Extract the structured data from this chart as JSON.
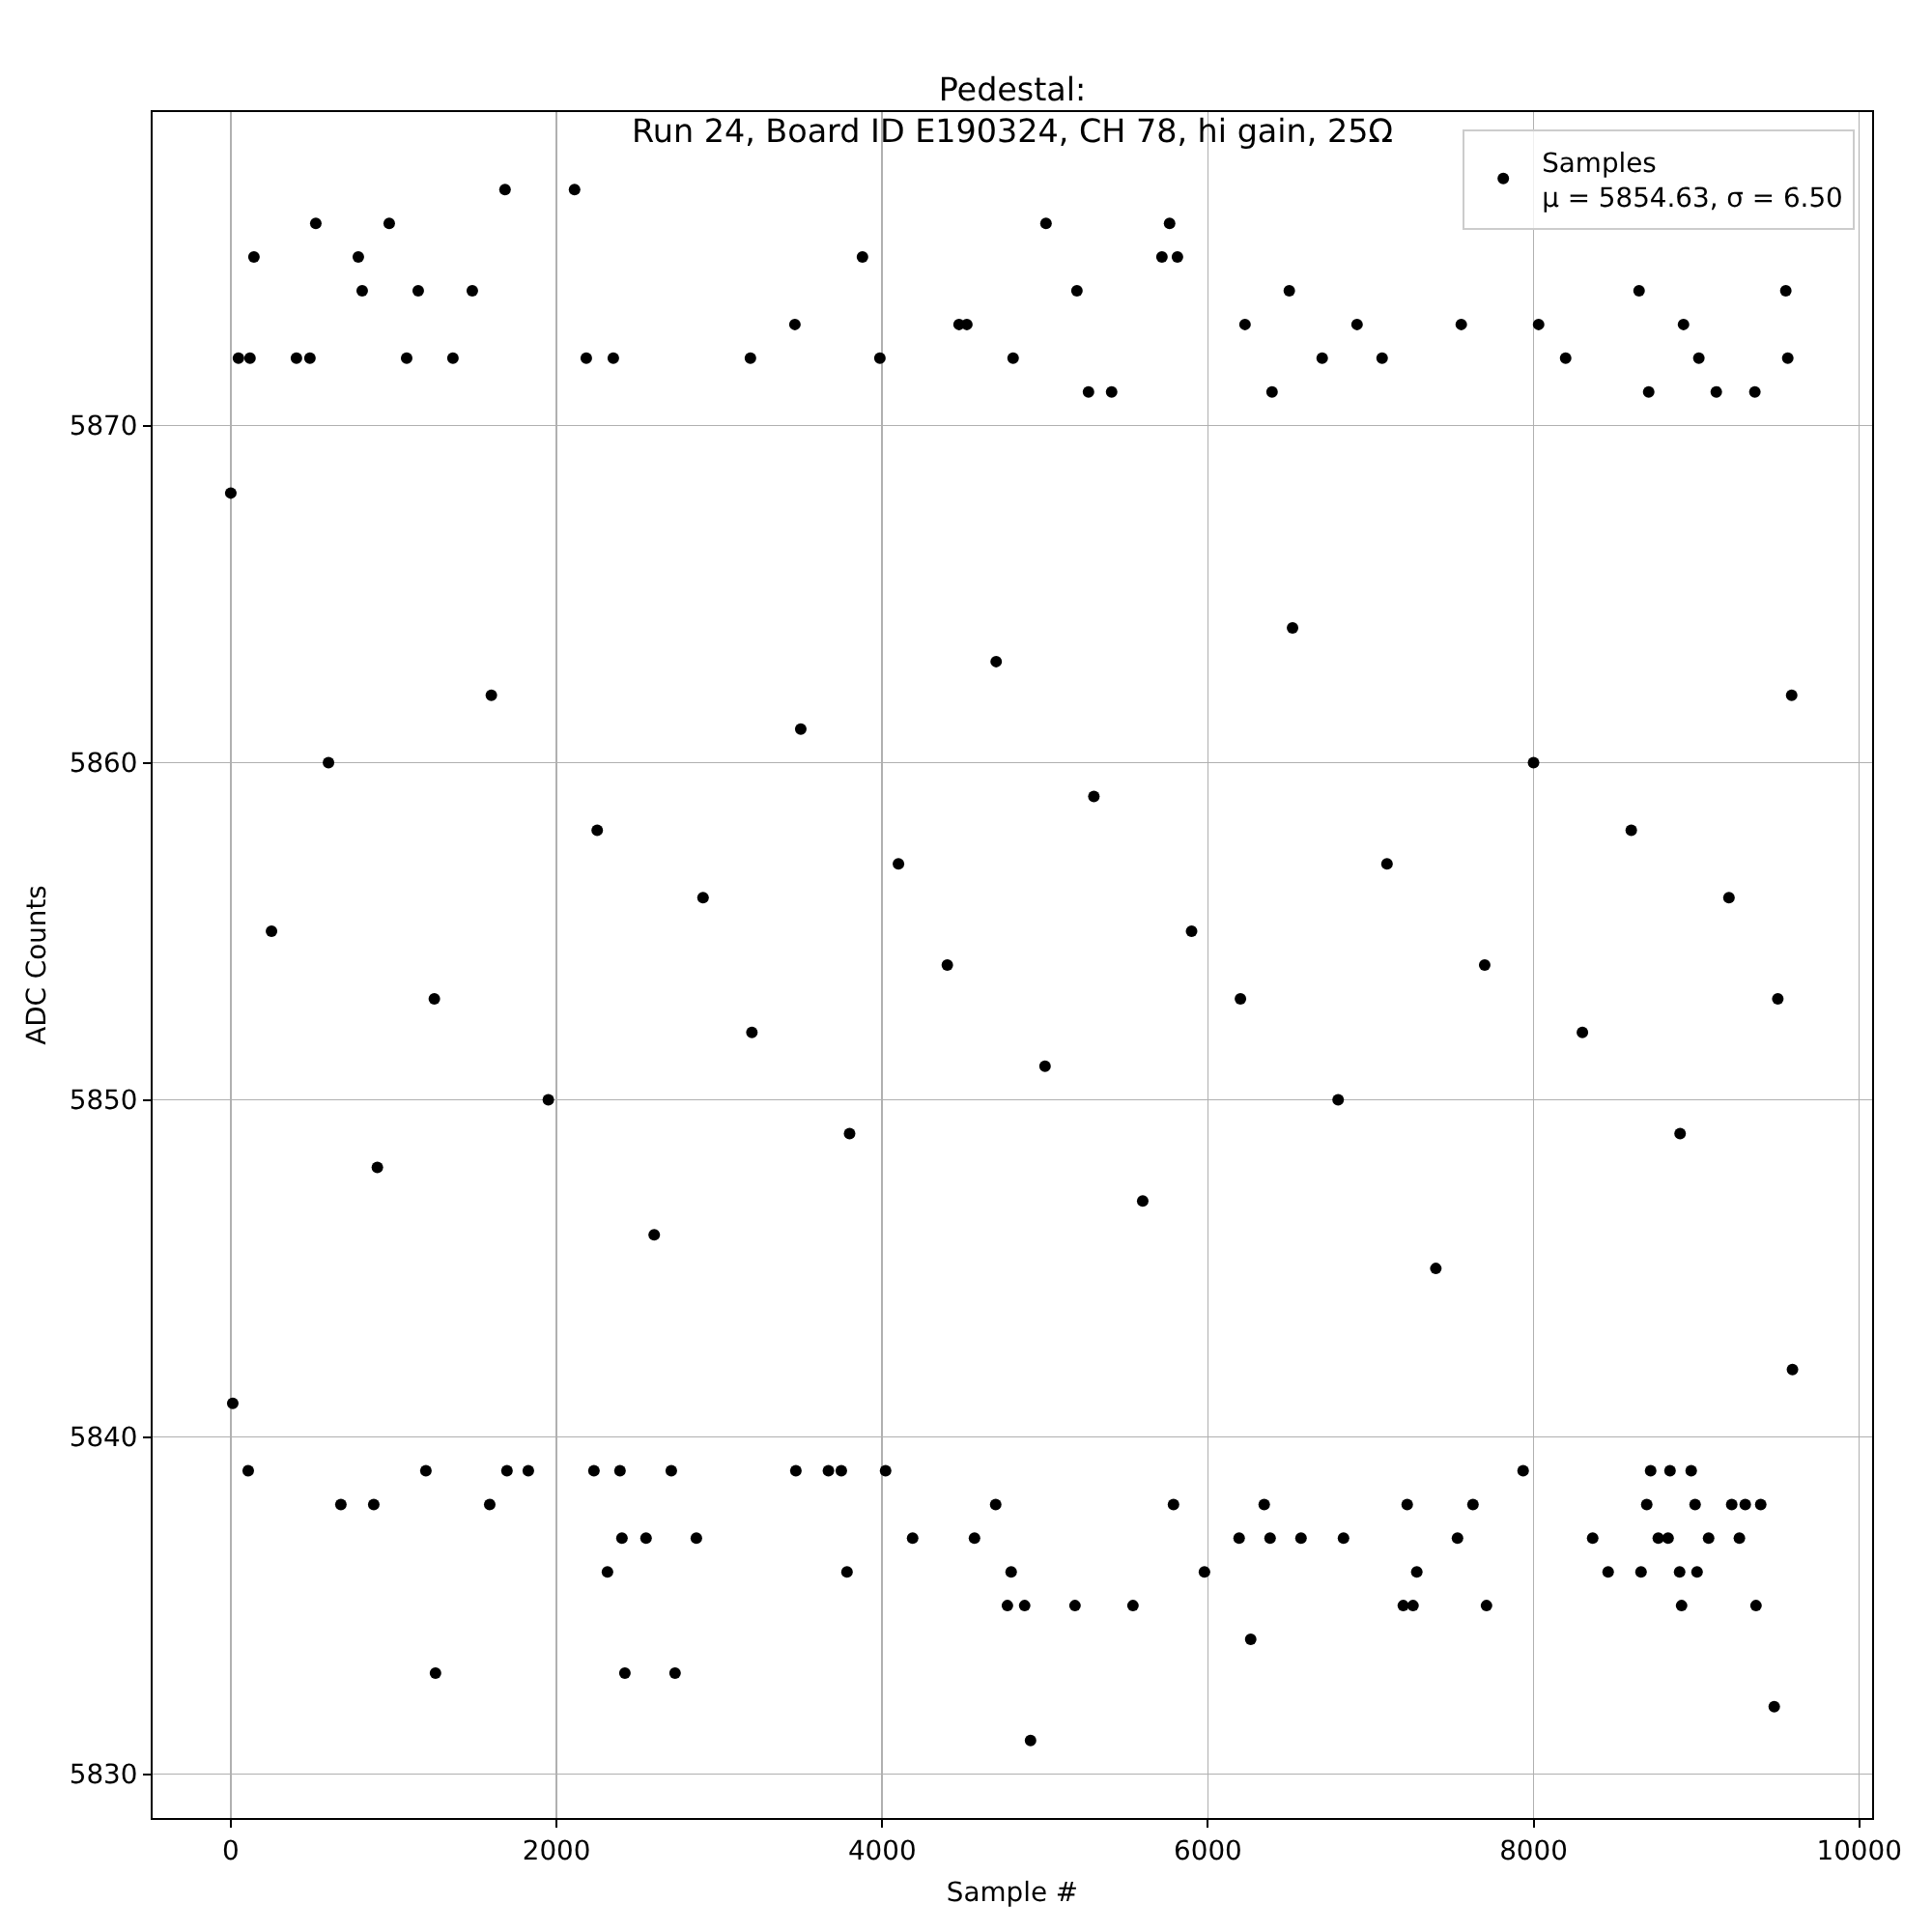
{
  "chart_data": {
    "type": "scatter",
    "title": "Pedestal:\nRun 24, Board ID E190324, CH 78, hi gain, 25Ω",
    "xlabel": "Sample #",
    "ylabel": "ADC Counts",
    "series": [
      {
        "name": "Samples\nμ = 5854.63, σ = 6.50",
        "color": "#000000",
        "x": [
          0,
          12,
          47,
          107,
          118,
          142,
          250,
          403,
          486,
          522,
          600,
          676,
          783,
          807,
          878,
          900,
          973,
          1080,
          1151,
          1198,
          1250,
          1257,
          1364,
          1483,
          1590,
          1600,
          1684,
          1696,
          1827,
          1950,
          2111,
          2183,
          2230,
          2250,
          2313,
          2349,
          2390,
          2402,
          2420,
          2550,
          2600,
          2705,
          2728,
          2859,
          2900,
          3191,
          3200,
          3464,
          3470,
          3500,
          3670,
          3749,
          3784,
          3800,
          3879,
          3986,
          4021,
          4100,
          4187,
          4400,
          4472,
          4520,
          4567,
          4697,
          4700,
          4769,
          4792,
          4804,
          4875,
          4911,
          5000,
          5006,
          5184,
          5196,
          5267,
          5300,
          5409,
          5540,
          5600,
          5718,
          5765,
          5789,
          5813,
          5900,
          5979,
          6192,
          6200,
          6228,
          6263,
          6346,
          6382,
          6394,
          6500,
          6520,
          6572,
          6702,
          6800,
          6833,
          6916,
          7070,
          7100,
          7200,
          7224,
          7260,
          7283,
          7400,
          7533,
          7556,
          7628,
          7700,
          7711,
          7936,
          8000,
          8031,
          8197,
          8300,
          8363,
          8458,
          8600,
          8648,
          8660,
          8695,
          8707,
          8719,
          8766,
          8826,
          8838,
          8897,
          8900,
          8909,
          8921,
          8968,
          8992,
          9004,
          9015,
          9075,
          9122,
          9200,
          9217,
          9264,
          9300,
          9359,
          9366,
          9395,
          9478,
          9500,
          9549,
          9561,
          9585,
          9590
        ],
        "values": [
          5868,
          5841,
          5872,
          5839,
          5872,
          5875,
          5855,
          5872,
          5872,
          5876,
          5860,
          5838,
          5875,
          5874,
          5838,
          5848,
          5876,
          5872,
          5874,
          5839,
          5853,
          5833,
          5872,
          5874,
          5838,
          5862,
          5877,
          5839,
          5839,
          5850,
          5877,
          5872,
          5839,
          5858,
          5836,
          5872,
          5839,
          5837,
          5833,
          5837,
          5846,
          5839,
          5833,
          5837,
          5856,
          5872,
          5852,
          5873,
          5839,
          5861,
          5839,
          5839,
          5836,
          5849,
          5875,
          5872,
          5839,
          5857,
          5837,
          5854,
          5873,
          5873,
          5837,
          5838,
          5863,
          5835,
          5836,
          5872,
          5835,
          5831,
          5851,
          5876,
          5835,
          5874,
          5871,
          5859,
          5871,
          5835,
          5847,
          5875,
          5876,
          5838,
          5875,
          5855,
          5836,
          5837,
          5853,
          5873,
          5834,
          5838,
          5837,
          5871,
          5874,
          5864,
          5837,
          5872,
          5850,
          5837,
          5873,
          5872,
          5857,
          5835,
          5838,
          5835,
          5836,
          5845,
          5837,
          5873,
          5838,
          5854,
          5835,
          5839,
          5860,
          5873,
          5872,
          5852,
          5837,
          5836,
          5858,
          5874,
          5836,
          5838,
          5871,
          5839,
          5837,
          5837,
          5839,
          5836,
          5849,
          5835,
          5873,
          5839,
          5838,
          5836,
          5872,
          5837,
          5871,
          5856,
          5838,
          5837,
          5838,
          5871,
          5835,
          5838,
          5832,
          5853,
          5874,
          5872,
          5862,
          5842
        ]
      }
    ],
    "xlim": [
      -480,
      10079
    ],
    "ylim": [
      5828.7,
      5879.3
    ],
    "xticks": [
      0,
      2000,
      4000,
      6000,
      8000,
      10000
    ],
    "yticks": [
      5830,
      5840,
      5850,
      5860,
      5870
    ],
    "grid": true,
    "legend": "top right",
    "marker": "circle"
  }
}
